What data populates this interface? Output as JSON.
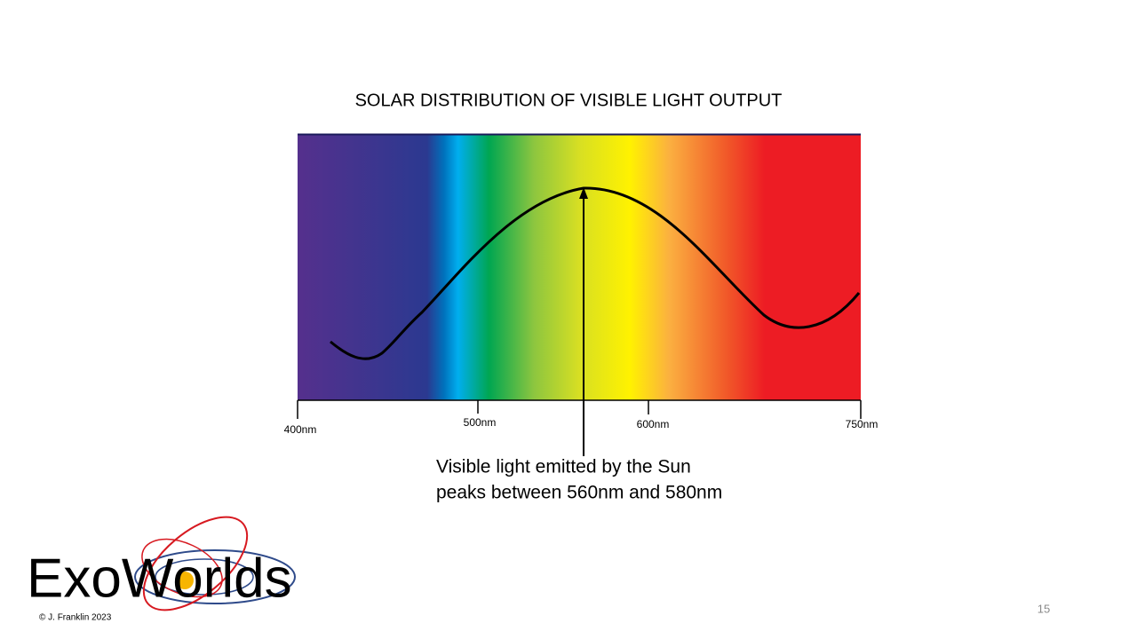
{
  "title": "SOLAR DISTRIBUTION OF VISIBLE LIGHT OUTPUT",
  "axis_labels": [
    "400nm",
    "500nm",
    "600nm",
    "750nm"
  ],
  "annotation": [
    "Visible light emitted by the Sun",
    "peaks between 560nm and 580nm"
  ],
  "logo": "ExoWorlds",
  "copyright": "© J. Franklin 2023",
  "page_number": "15"
}
